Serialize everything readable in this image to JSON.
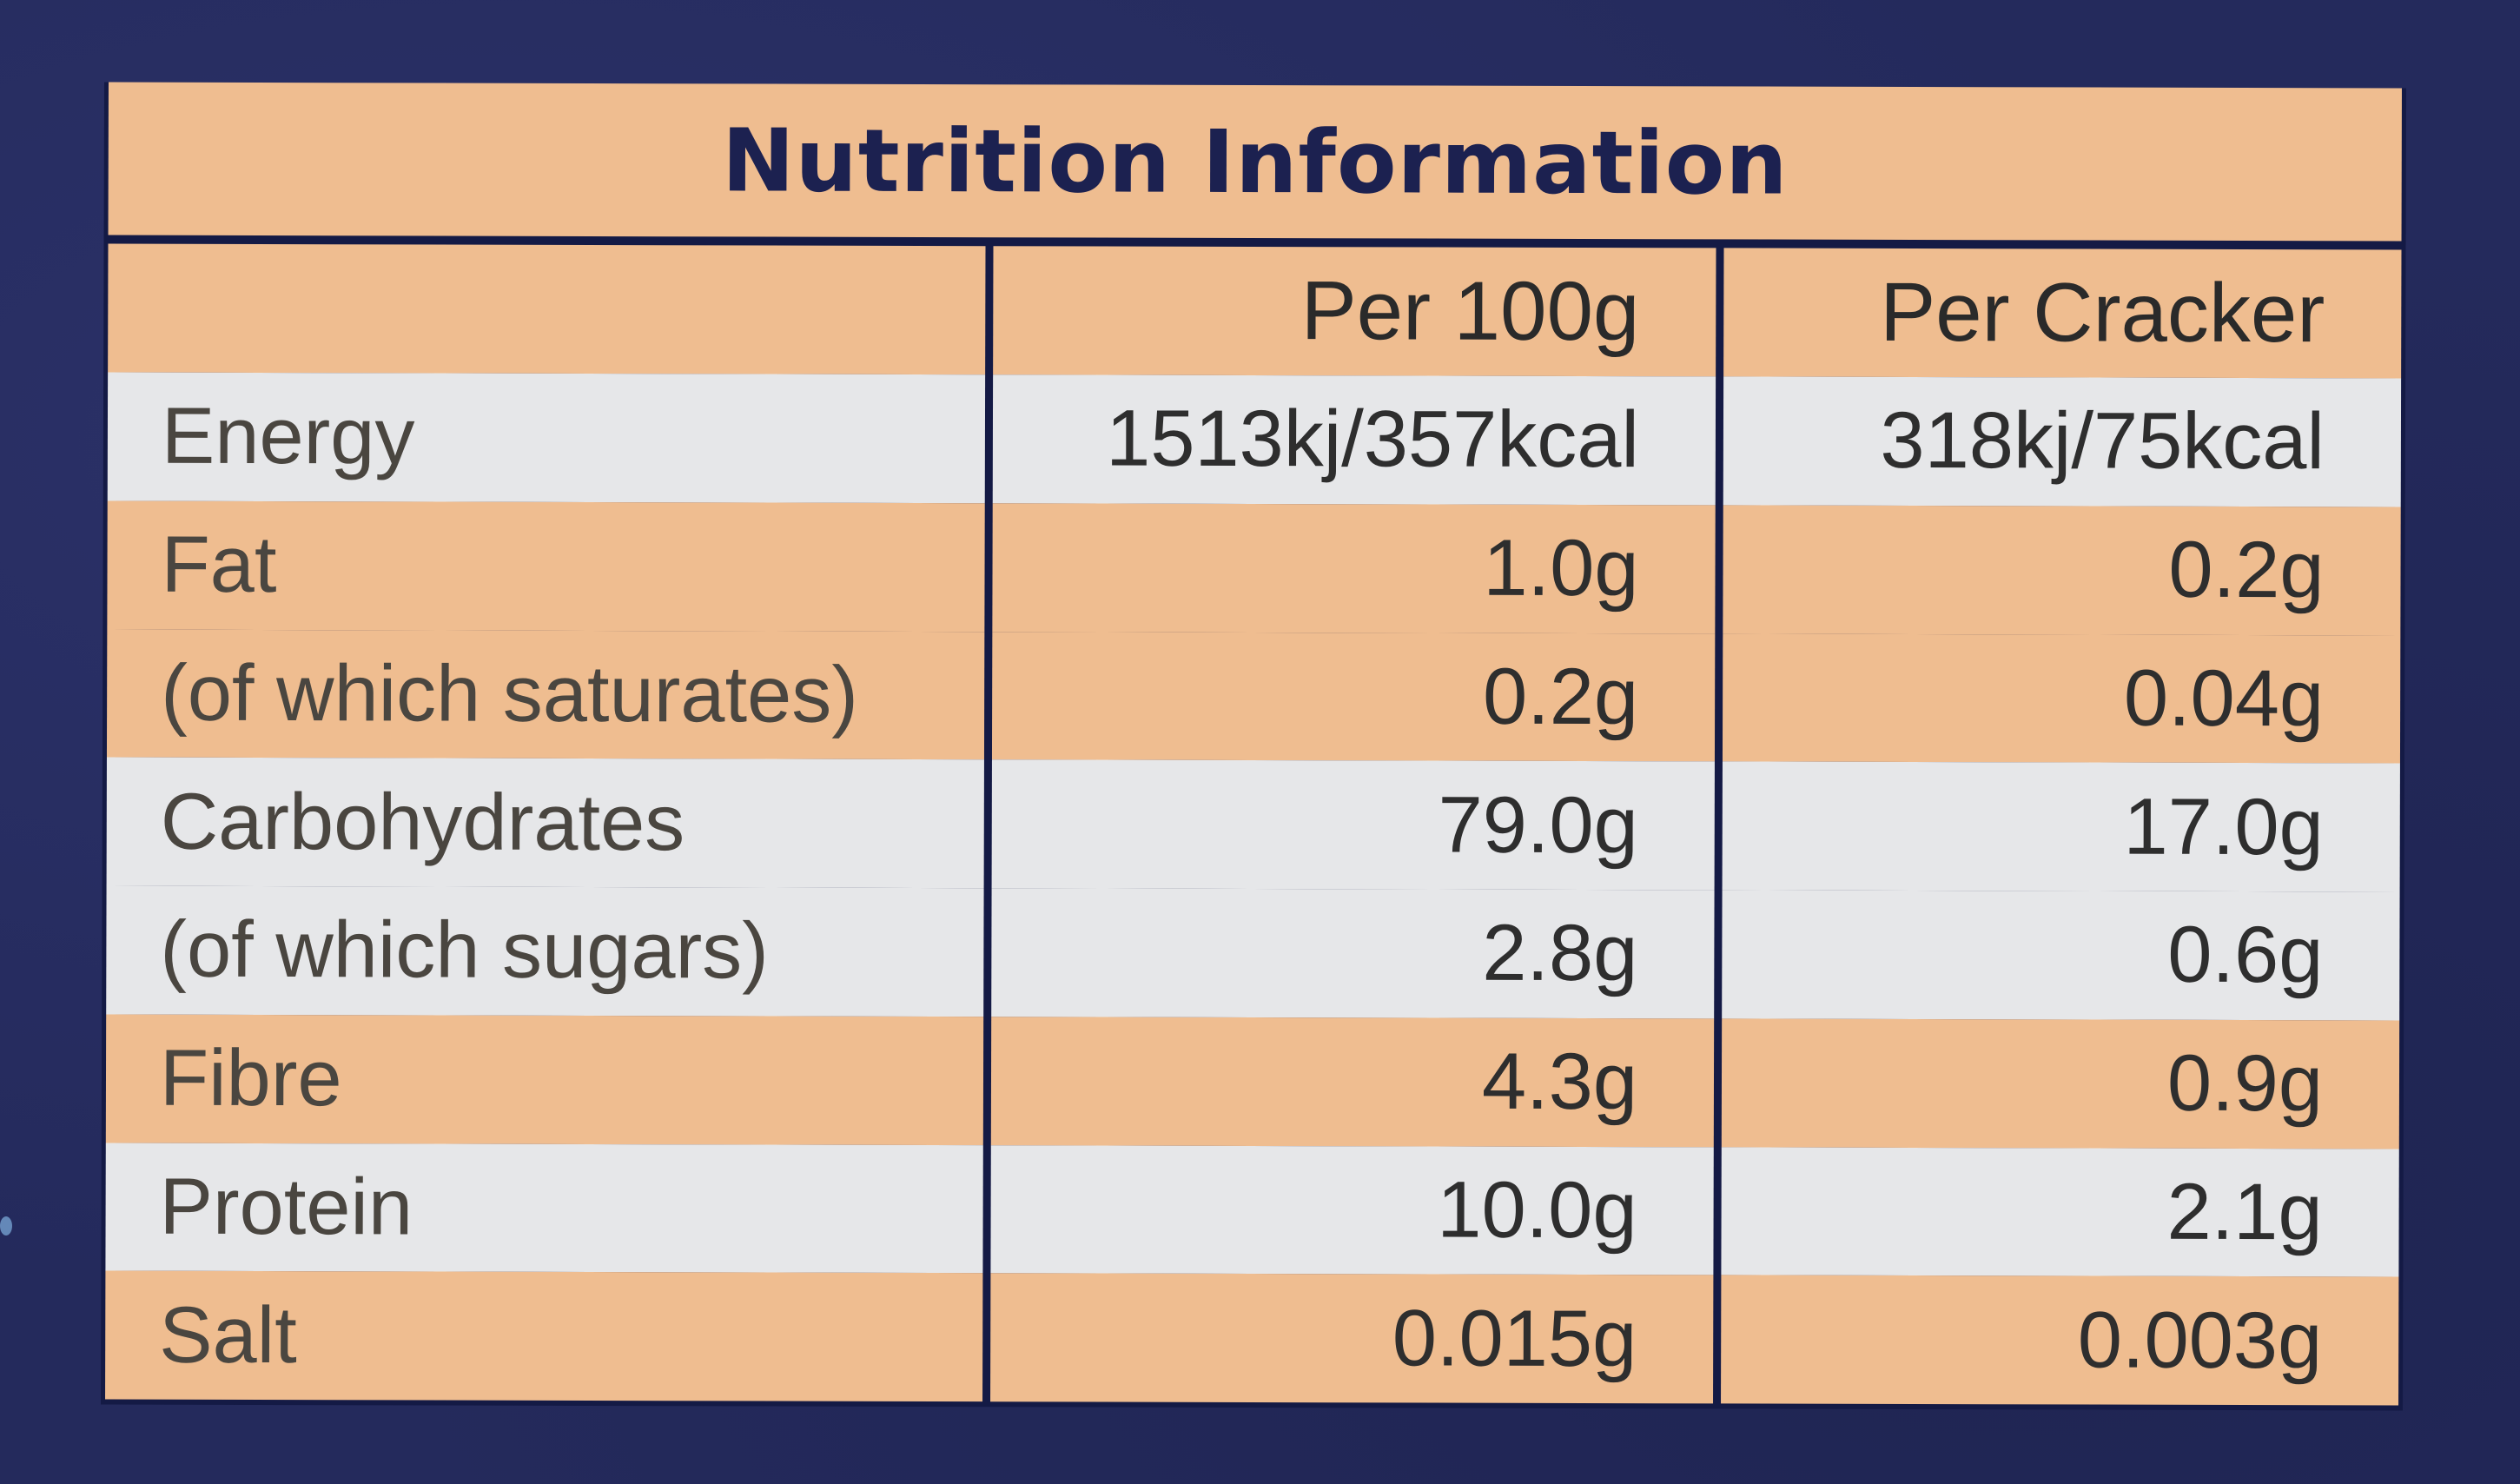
{
  "title": "Nutrition Information",
  "columns": [
    "",
    "Per 100g",
    "Per Cracker"
  ],
  "rows": [
    {
      "nutrient": "Energy",
      "per_100g": "1513kj/357kcal",
      "per_cracker": "318kj/75kcal",
      "band": "white"
    },
    {
      "nutrient": "Fat",
      "per_100g": "1.0g",
      "per_cracker": "0.2g",
      "band": "peach"
    },
    {
      "nutrient": "(of which saturates)",
      "per_100g": "0.2g",
      "per_cracker": "0.04g",
      "band": "peach"
    },
    {
      "nutrient": "Carbohydrates",
      "per_100g": "79.0g",
      "per_cracker": "17.0g",
      "band": "white"
    },
    {
      "nutrient": "(of which sugars)",
      "per_100g": "2.8g",
      "per_cracker": "0.6g",
      "band": "white"
    },
    {
      "nutrient": "Fibre",
      "per_100g": "4.3g",
      "per_cracker": "0.9g",
      "band": "peach"
    },
    {
      "nutrient": "Protein",
      "per_100g": "10.0g",
      "per_cracker": "2.1g",
      "band": "white"
    },
    {
      "nutrient": "Salt",
      "per_100g": "0.015g",
      "per_cracker": "0.003g",
      "band": "peach"
    }
  ],
  "colors": {
    "background": "#23285a",
    "border": "#141a45",
    "peach": "#efbd90",
    "white": "#e6e7e9",
    "title_text": "#1c2150"
  }
}
